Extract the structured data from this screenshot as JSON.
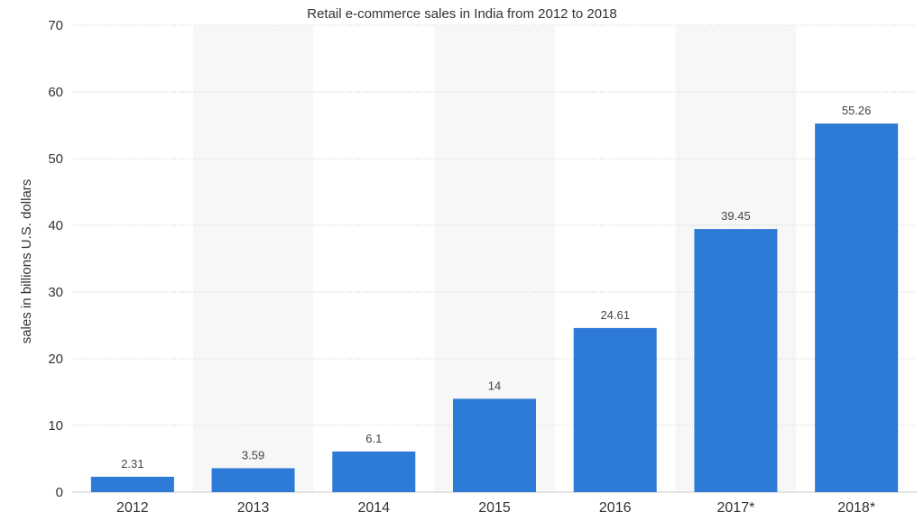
{
  "chart_data": {
    "type": "bar",
    "title": "Retail e-commerce sales in India from 2012 to 2018",
    "xlabel": "",
    "ylabel": "sales in billions U.S. dollars",
    "categories": [
      "2012",
      "2013",
      "2014",
      "2015",
      "2016",
      "2017*",
      "2018*"
    ],
    "values": [
      2.31,
      3.59,
      6.1,
      14,
      24.61,
      39.45,
      55.26
    ],
    "data_labels": [
      "2.31",
      "3.59",
      "6.1",
      "14",
      "24.61",
      "39.45",
      "55.26"
    ],
    "ylim": [
      0,
      70
    ],
    "yticks": [
      "0",
      "10",
      "20",
      "30",
      "40",
      "50",
      "60",
      "70"
    ],
    "grid": true,
    "bar_color": "#2e7ad7",
    "band_color": "#f7f7f7",
    "gridline_color": "#c9c9c9"
  }
}
